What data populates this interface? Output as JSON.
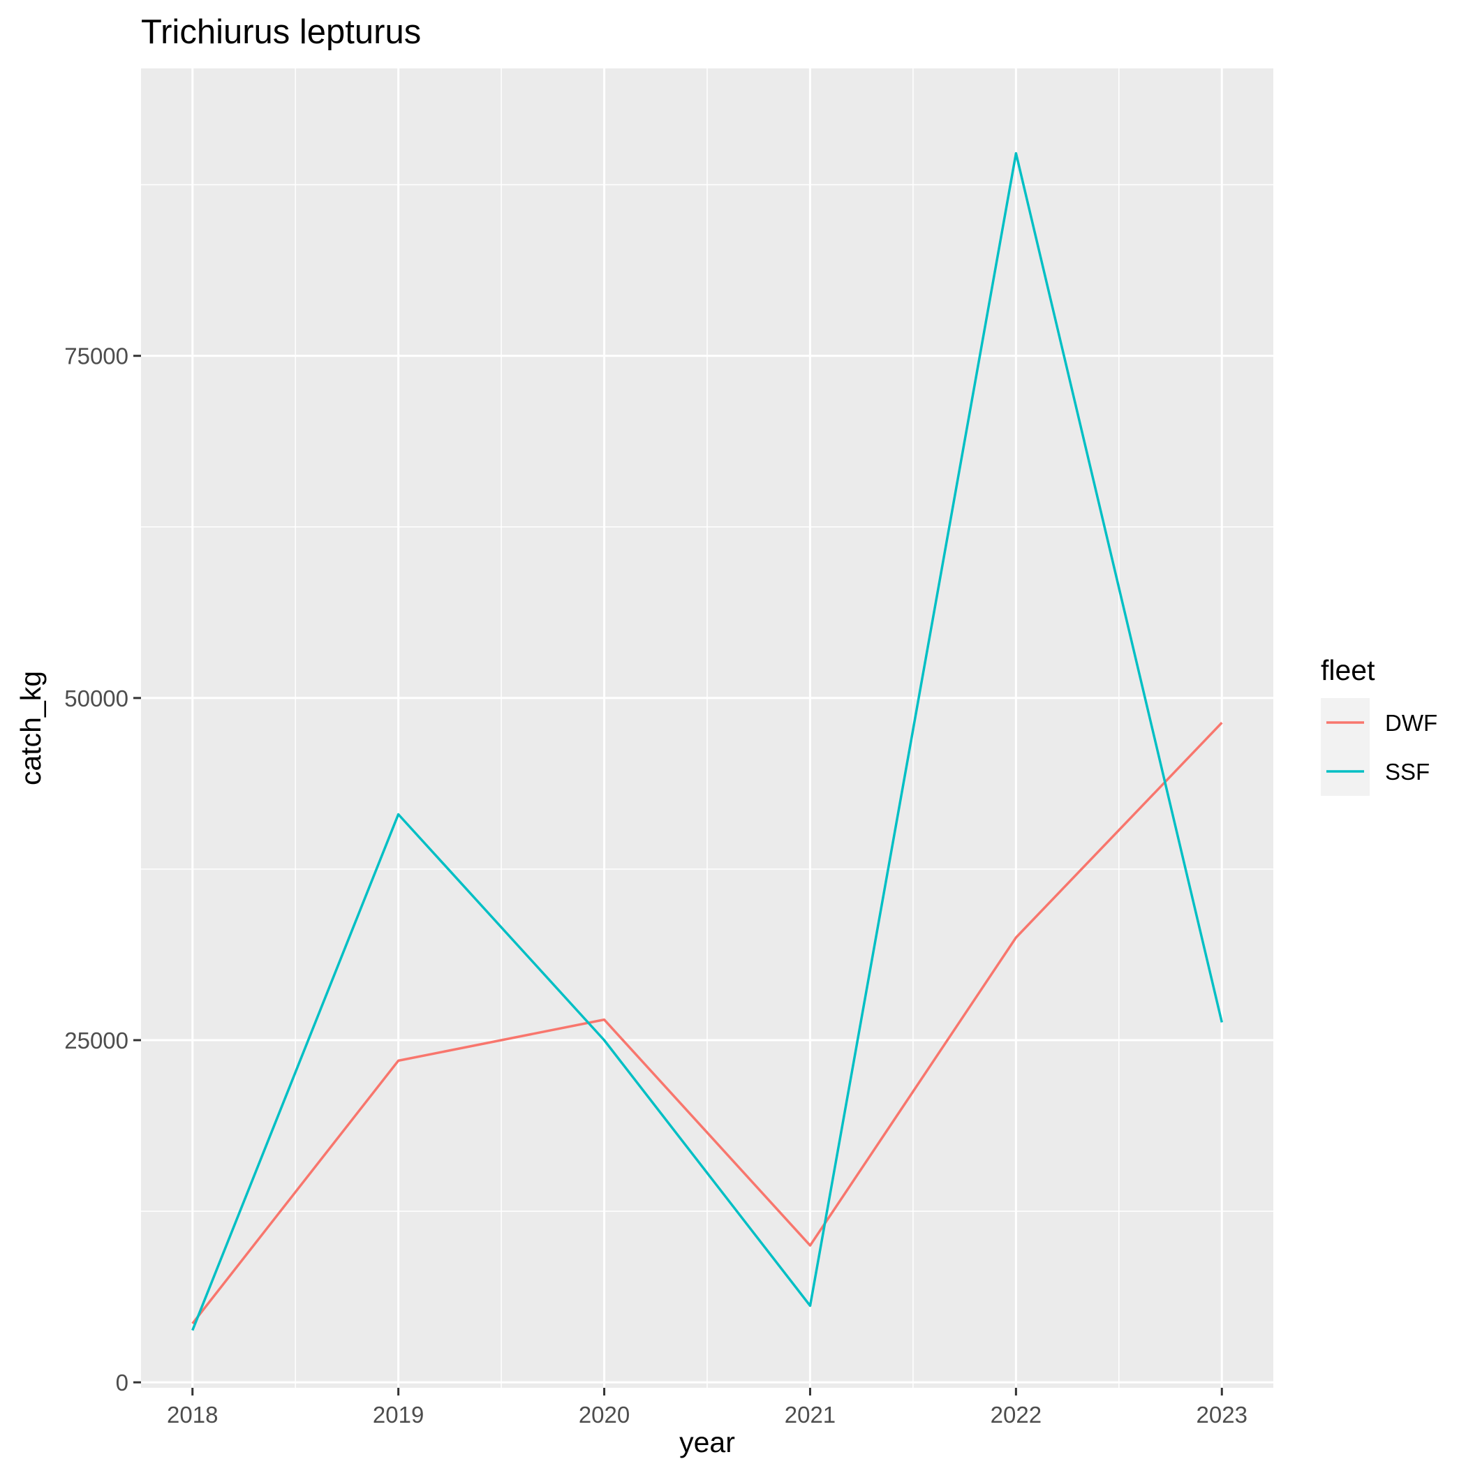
{
  "chart_data": {
    "type": "line",
    "title": "Trichiurus lepturus",
    "xlabel": "year",
    "ylabel": "catch_kg",
    "x": [
      2018,
      2019,
      2020,
      2021,
      2022,
      2023
    ],
    "x_tick_labels": [
      "2018",
      "2019",
      "2020",
      "2021",
      "2022",
      "2023"
    ],
    "y_tick_labels": [
      "0",
      "25000",
      "50000",
      "75000"
    ],
    "y_ticks": [
      0,
      25000,
      50000,
      75000
    ],
    "xlim": [
      2017.75,
      2023.25
    ],
    "ylim": [
      -400,
      96000
    ],
    "grid": true,
    "legend": {
      "title": "fleet",
      "position": "right"
    },
    "series": [
      {
        "name": "DWF",
        "color": "#F8766D",
        "values": [
          4300,
          23500,
          26500,
          10000,
          32500,
          48200
        ]
      },
      {
        "name": "SSF",
        "color": "#00BFC4",
        "values": [
          3800,
          41500,
          25000,
          5600,
          89800,
          26300
        ]
      }
    ]
  },
  "colors": {
    "panel_background": "#EBEBEB",
    "grid": "#FFFFFF",
    "legend_key_background": "#F2F2F2"
  }
}
